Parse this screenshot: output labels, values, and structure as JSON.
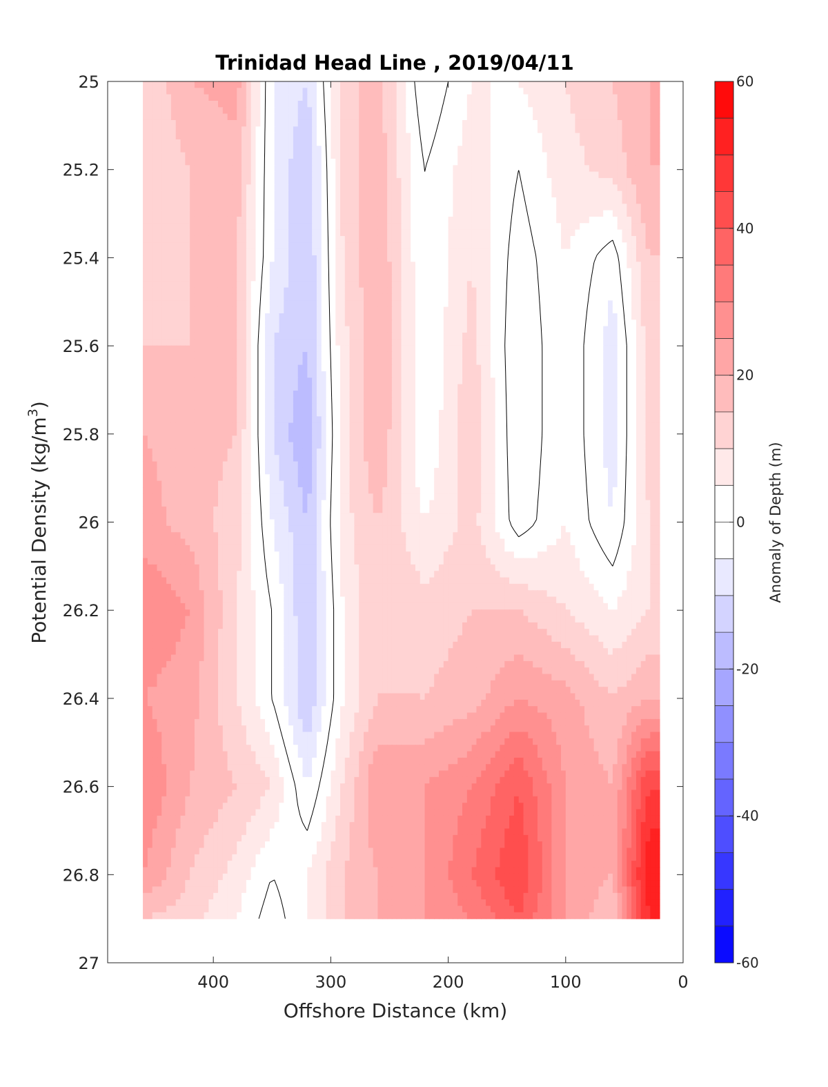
{
  "chart_data": {
    "type": "heatmap",
    "title": "Trinidad Head Line , 2019/04/11",
    "xlabel": "Offshore Distance (km)",
    "ylabel_main": "Potential Density (kg/m",
    "ylabel_sup": "3",
    "ylabel_close": ")",
    "colorbar_label": "Anomaly of Depth (m)",
    "xlim": [
      490,
      0
    ],
    "ylim": [
      27,
      25
    ],
    "x_reversed": true,
    "y_reversed": true,
    "x_ticks": [
      400,
      300,
      200,
      100,
      0
    ],
    "y_ticks": [
      25,
      25.2,
      25.4,
      25.6,
      25.8,
      26,
      26.2,
      26.4,
      26.6,
      26.8,
      27
    ],
    "y_tick_labels": [
      "25",
      "25.2",
      "25.4",
      "25.6",
      "25.8",
      "26",
      "26.2",
      "26.4",
      "26.6",
      "26.8",
      "27"
    ],
    "colorbar_range": [
      -60,
      60
    ],
    "colorbar_step": 5,
    "colorbar_ticks": [
      60,
      40,
      20,
      0,
      -20,
      -40,
      -60
    ],
    "colormap": {
      "negative": "#0000ff",
      "zero": "#ffffff",
      "positive": "#ff0000"
    },
    "zero_contour": true,
    "data_extent_x": [
      460,
      20
    ],
    "data_extent_y": [
      25,
      26.9
    ],
    "x": [
      460,
      420,
      380,
      350,
      320,
      290,
      260,
      220,
      180,
      140,
      100,
      60,
      30
    ],
    "y": [
      25,
      25.2,
      25.4,
      25.6,
      25.8,
      26,
      26.2,
      26.4,
      26.6,
      26.8,
      26.9
    ],
    "z": [
      [
        10,
        20,
        22,
        -5,
        -10,
        12,
        18,
        -5,
        5,
        5,
        10,
        15,
        20
      ],
      [
        10,
        15,
        18,
        -5,
        -15,
        12,
        18,
        0,
        8,
        0,
        8,
        12,
        20
      ],
      [
        10,
        15,
        15,
        -5,
        -15,
        10,
        20,
        0,
        10,
        -3,
        5,
        -3,
        15
      ],
      [
        15,
        15,
        15,
        -10,
        -15,
        8,
        20,
        0,
        12,
        -5,
        5,
        -8,
        12
      ],
      [
        20,
        18,
        15,
        -10,
        -20,
        8,
        20,
        0,
        15,
        -5,
        5,
        -8,
        12
      ],
      [
        22,
        18,
        12,
        -5,
        -15,
        8,
        15,
        5,
        12,
        -3,
        5,
        -5,
        10
      ],
      [
        30,
        25,
        10,
        0,
        -15,
        5,
        15,
        12,
        15,
        15,
        10,
        5,
        10
      ],
      [
        25,
        22,
        10,
        0,
        -15,
        5,
        15,
        15,
        18,
        25,
        22,
        15,
        20
      ],
      [
        30,
        20,
        15,
        10,
        -5,
        10,
        25,
        25,
        30,
        40,
        25,
        20,
        45
      ],
      [
        25,
        15,
        8,
        0,
        5,
        15,
        20,
        25,
        35,
        45,
        25,
        20,
        55
      ],
      [
        15,
        12,
        5,
        -3,
        5,
        15,
        20,
        25,
        30,
        40,
        25,
        15,
        50
      ]
    ]
  }
}
